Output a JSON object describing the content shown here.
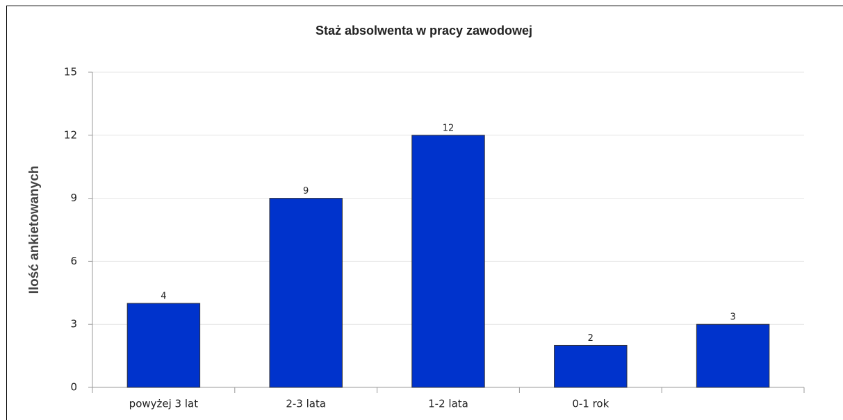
{
  "chart_data": {
    "type": "bar",
    "title": "Staż absolwenta w pracy zawodowej",
    "y_label": "Ilość ankietowanych",
    "categories": [
      "powyżej 3 lat",
      "2-3 lata",
      "1-2 lata",
      "0-1 rok",
      null
    ],
    "values": [
      4,
      9,
      12,
      2,
      3
    ],
    "color": "#0033cc",
    "ylim": [
      0,
      15
    ],
    "yticks": [
      0,
      3,
      6,
      9,
      12,
      15
    ],
    "grid": true
  }
}
